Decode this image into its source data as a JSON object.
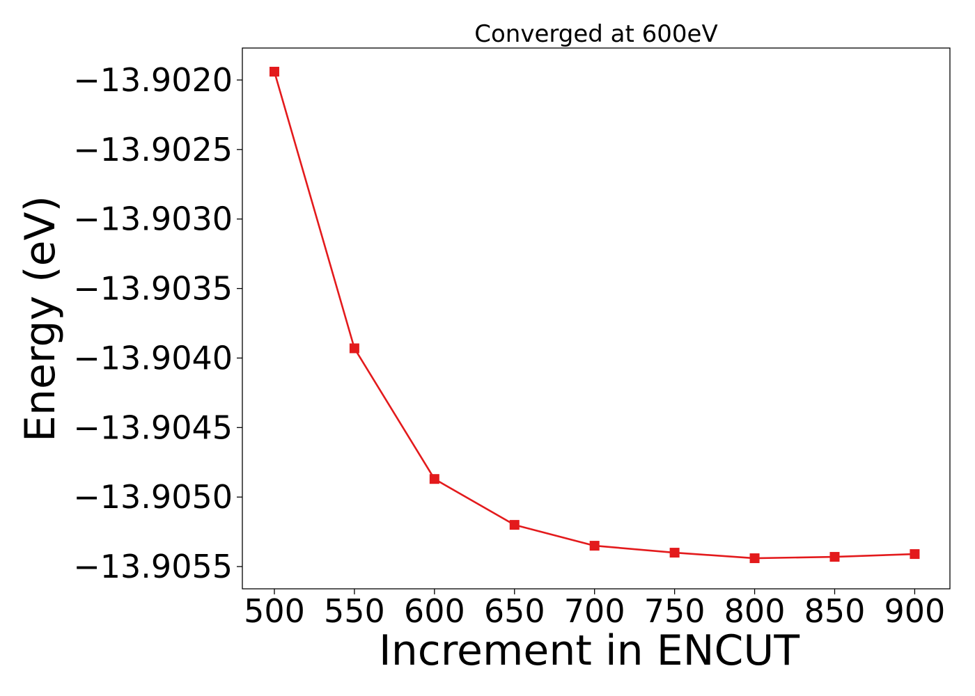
{
  "chart_data": {
    "type": "line",
    "title": "Converged at 600eV",
    "xlabel": "Increment in ENCUT",
    "ylabel": "Energy (eV)",
    "x": [
      500,
      550,
      600,
      650,
      700,
      750,
      800,
      850,
      900
    ],
    "series": [
      {
        "values": [
          -13.90194,
          -13.90393,
          -13.90487,
          -13.9052,
          -13.90535,
          -13.9054,
          -13.90544,
          -13.90543,
          -13.90541
        ],
        "color": "#e31a1c",
        "marker": "square"
      }
    ],
    "xticks": [
      500,
      550,
      600,
      650,
      700,
      750,
      800,
      850,
      900
    ],
    "xtick_labels": [
      "500",
      "550",
      "600",
      "650",
      "700",
      "750",
      "800",
      "850",
      "900"
    ],
    "yticks": [
      -13.902,
      -13.9025,
      -13.903,
      -13.9035,
      -13.904,
      -13.9045,
      -13.905,
      -13.9055
    ],
    "ytick_labels": [
      "−13.9020",
      "−13.9025",
      "−13.9030",
      "−13.9035",
      "−13.9040",
      "−13.9045",
      "−13.9050",
      "−13.9055"
    ],
    "xlim": [
      480,
      922
    ],
    "ylim": [
      -13.90566,
      -13.90177
    ],
    "grid": false
  }
}
